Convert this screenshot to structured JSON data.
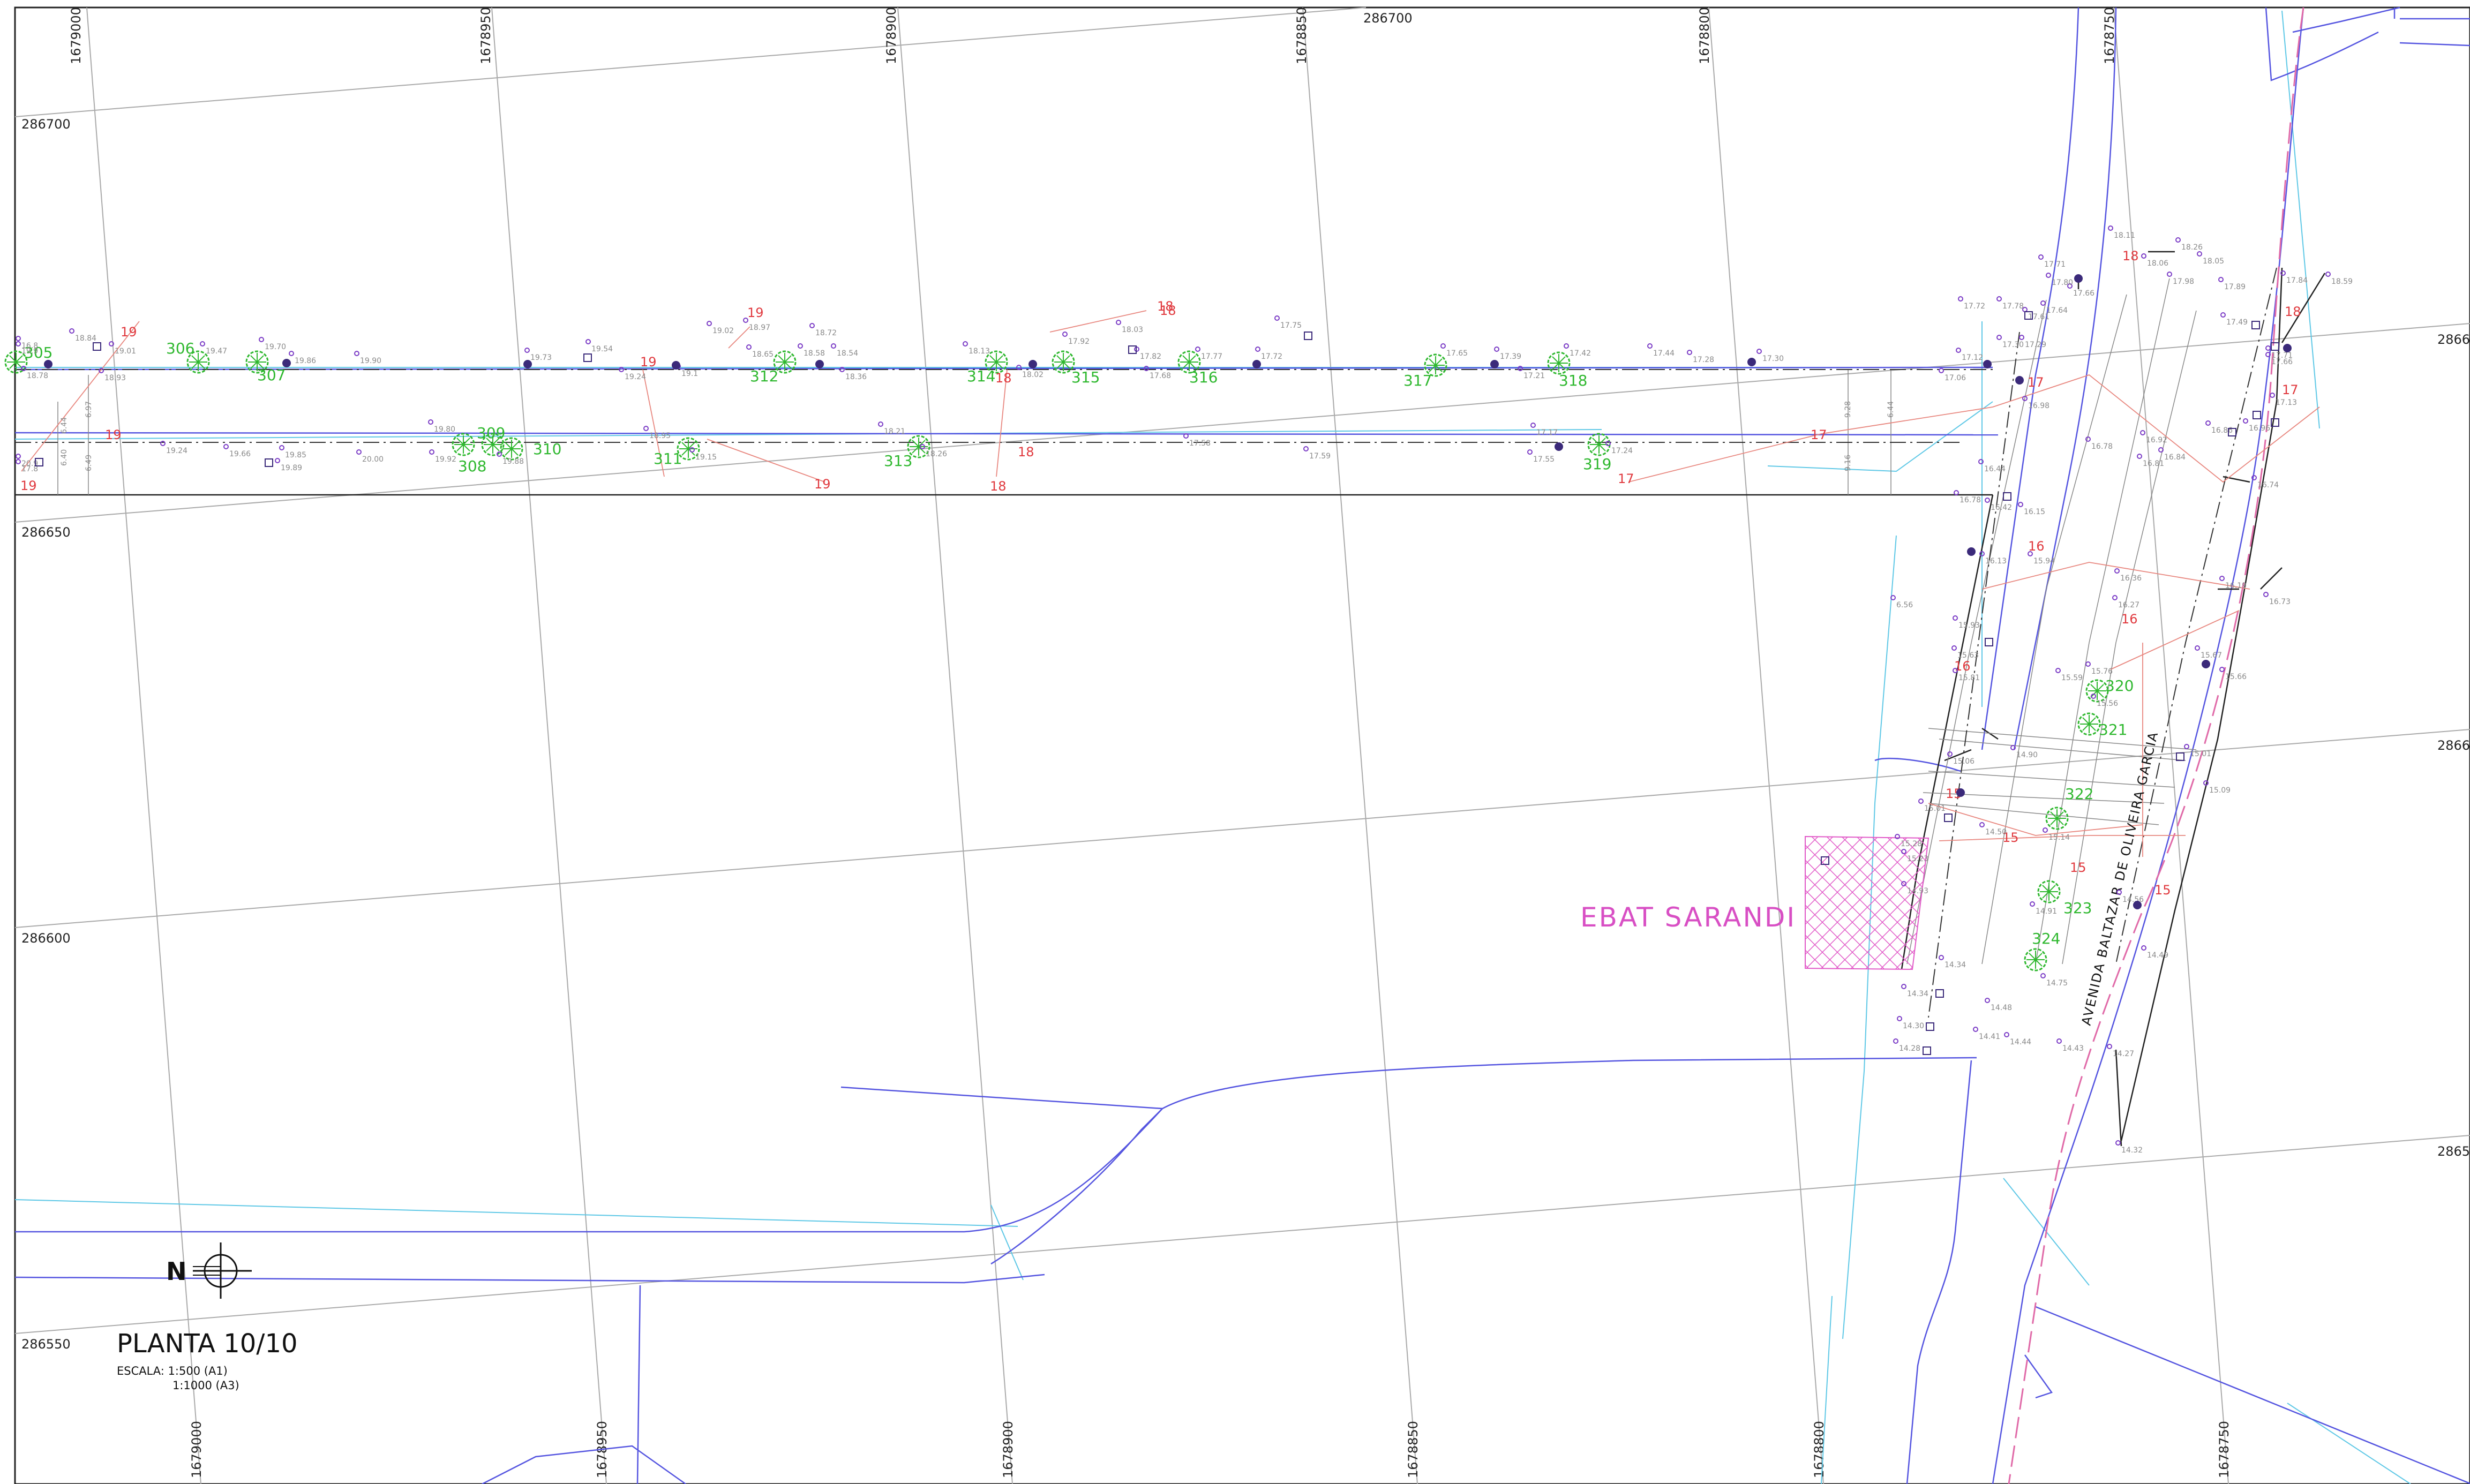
{
  "grid": {
    "x_labels_top": [
      "1679000",
      "1678950",
      "1678900",
      "1678850",
      "1678800",
      "1678750"
    ],
    "x_labels_bottom": [
      "1679000",
      "1678950",
      "1678900",
      "1678850",
      "1678800",
      "1678750"
    ],
    "y_labels_left": [
      "286700",
      "286650",
      "286600",
      "286550"
    ],
    "y_labels_right": [
      "2866",
      "2866",
      "2865"
    ],
    "top_label": "286700"
  },
  "title": {
    "sheet": "PLANTA 10/10",
    "scale_line1": "ESCALA: 1:500 (A1)",
    "scale_line2": "1:1000 (A3)"
  },
  "north_arrow": {
    "letter": "N"
  },
  "area_label": "EBAT SARANDI",
  "street_label": "AVENIDA BALTAZAR DE OLIVEIRA GARCIA",
  "trees": [
    "305",
    "306",
    "307",
    "308",
    "309",
    "310",
    "311",
    "312",
    "313",
    "314",
    "315",
    "316",
    "317",
    "318",
    "319",
    "320",
    "321",
    "322",
    "323",
    "324"
  ],
  "contours": [
    "19",
    "19",
    "19",
    "19",
    "19",
    "19",
    "18",
    "18",
    "18",
    "18",
    "18",
    "17",
    "17",
    "17",
    "17",
    "16",
    "16",
    "16",
    "15",
    "15",
    "15",
    "15",
    "18",
    "18"
  ],
  "elevations": [
    "18.84",
    "19.01",
    "18.78",
    "18.93",
    "19.47",
    "19.70",
    "19.86",
    "19.90",
    "19.73",
    "19.54",
    "19.24",
    "19.1",
    "19.02",
    "18.97",
    "18.72",
    "18.65",
    "18.58",
    "18.54",
    "18.36",
    "18.13",
    "18.02",
    "17.92",
    "18.03",
    "17.82",
    "17.77",
    "17.68",
    "17.72",
    "17.75",
    "17.65",
    "17.39",
    "17.21",
    "17.42",
    "17.44",
    "17.28",
    "17.30",
    "19.24",
    "19.66",
    "19.85",
    "19.89",
    "20.00",
    "19.80",
    "19.92",
    "19.88",
    "18.95",
    "19.15",
    "18.21",
    "18.26",
    "17.58",
    "17.59",
    "17.17",
    "17.55",
    "17.24",
    "17.72",
    "17.78",
    "17.61",
    "17.64",
    "17.66",
    "17.71",
    "17.80",
    "17.12",
    "17.06",
    "17.30",
    "17.29",
    "16.98",
    "16.44",
    "16.78",
    "16.42",
    "16.15",
    "16.13",
    "15.94",
    "16.36",
    "16.27",
    "15.93",
    "15.63",
    "15.81",
    "15.59",
    "15.76",
    "15.56",
    "15.06",
    "14.90",
    "15.01",
    "14.50",
    "15.14",
    "15.28",
    "15.23",
    "14.93",
    "14.91",
    "14.75",
    "14.48",
    "14.41",
    "14.44",
    "14.43",
    "14.34",
    "14.34",
    "14.30",
    "14.28",
    "14.56",
    "14.49",
    "14.32",
    "14.27",
    "15.66",
    "15.67",
    "16.19",
    "16.73",
    "17.49",
    "17.84",
    "18.59",
    "17.71",
    "17.66",
    "17.13",
    "16.96",
    "16.84",
    "16.81",
    "16.92",
    "16.78",
    "16.86",
    "16.74",
    "18.11",
    "18.26",
    "18.06",
    "18.05",
    "17.98",
    "17.89",
    "15.01",
    "15.09",
    "6.56",
    "19.9",
    "20.9",
    "16.8",
    "17.8"
  ],
  "dims": [
    "6.97",
    "6.44",
    "6.49",
    "6.40",
    "9.28",
    "9.16",
    "6.44"
  ]
}
